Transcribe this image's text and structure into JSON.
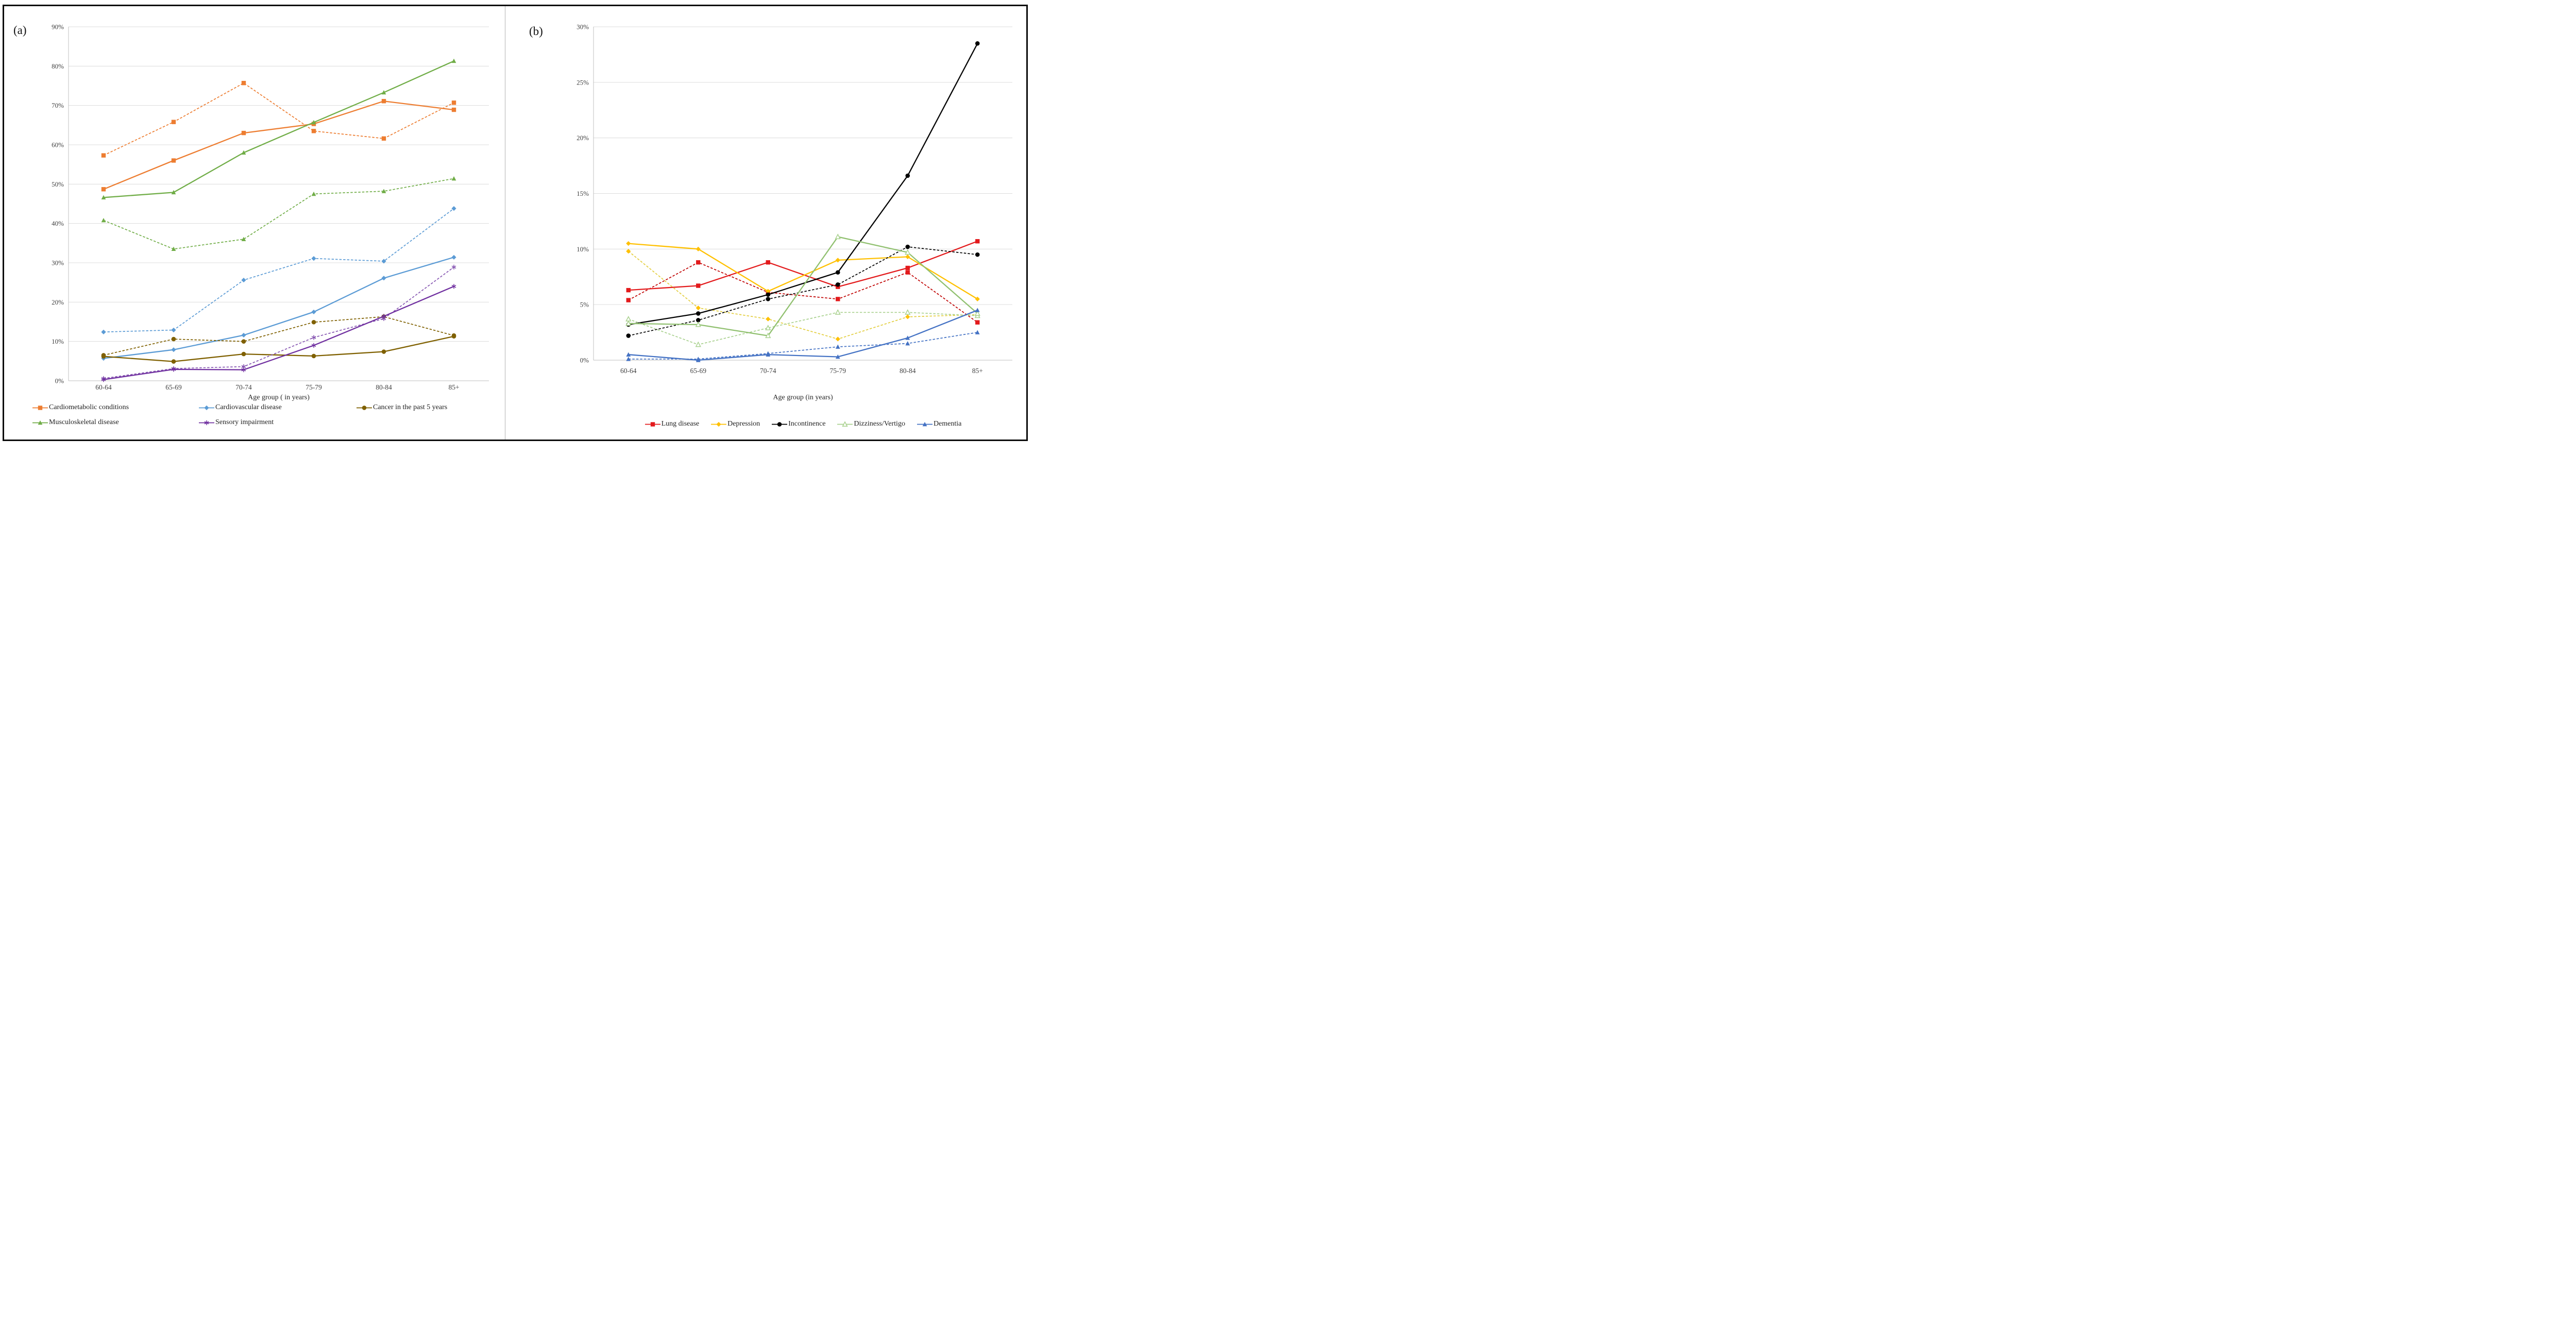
{
  "figure": {
    "panel_a": {
      "label": "(a)",
      "x_axis_title": "Age group ( in years)"
    },
    "panel_b": {
      "label": "(b)",
      "x_axis_title": "Age group (in years)"
    }
  },
  "colors": {
    "orange": "#ED7D31",
    "green": "#70AD47",
    "blue": "#5B9BD5",
    "olive": "#7F6000",
    "purple": "#7030A0",
    "purple_light": "#8757B2",
    "red": "#E31A1C",
    "dark_red": "#C00000",
    "gold": "#FFC000",
    "pale_yellow": "#E3CE3E",
    "black": "#000000",
    "light_green": "#A9D18E",
    "sage_green": "#90C06F",
    "dementia_blue": "#4472C4",
    "gridline": "#dcdcdc",
    "axis": "#bfbfbf",
    "tick_text": "#404040"
  },
  "chart_data": [
    {
      "id": "chart-a",
      "type": "line",
      "title": "",
      "xlabel": "Age group ( in years)",
      "ylabel": "",
      "categories": [
        "60-64",
        "65-69",
        "70-74",
        "75-79",
        "80-84",
        "85+"
      ],
      "ylim": [
        0,
        90
      ],
      "ytick_step": 10,
      "y_ticks": [
        "0%",
        "10%",
        "20%",
        "30%",
        "40%",
        "50%",
        "60%",
        "70%",
        "80%",
        "90%"
      ],
      "grid": true,
      "legend_position": "bottom-left-two-rows",
      "series": [
        {
          "name": "Cardiometabolic conditions (dashed)",
          "color": "#ED7D31",
          "marker": "square",
          "style": "dashed",
          "values": [
            57.3,
            65.8,
            75.7,
            63.5,
            61.6,
            70.7
          ]
        },
        {
          "name": "Cardiometabolic conditions",
          "color": "#ED7D31",
          "marker": "square",
          "style": "solid",
          "values": [
            48.7,
            56.0,
            63.0,
            65.3,
            71.1,
            68.9
          ]
        },
        {
          "name": "Musculoskeletal disease (dashed)",
          "color": "#70AD47",
          "marker": "triangle",
          "style": "dashed",
          "values": [
            40.8,
            33.5,
            36.0,
            47.5,
            48.2,
            51.4
          ]
        },
        {
          "name": "Musculoskeletal disease",
          "color": "#70AD47",
          "marker": "triangle",
          "style": "solid",
          "values": [
            46.6,
            47.9,
            58.0,
            65.7,
            73.3,
            81.3
          ]
        },
        {
          "name": "Cardiovascular disease (dashed)",
          "color": "#5B9BD5",
          "marker": "diamond",
          "style": "dashed",
          "values": [
            12.4,
            12.9,
            25.6,
            31.1,
            30.4,
            43.8
          ]
        },
        {
          "name": "Cardiovascular disease",
          "color": "#5B9BD5",
          "marker": "diamond",
          "style": "solid",
          "values": [
            5.7,
            7.9,
            11.6,
            17.5,
            26.1,
            31.4
          ]
        },
        {
          "name": "Cancer in the past 5 years (dashed)",
          "color": "#7F6000",
          "marker": "circle",
          "style": "dashed",
          "values": [
            6.5,
            10.6,
            10.0,
            14.9,
            16.3,
            11.5
          ]
        },
        {
          "name": "Cancer in the past 5 years",
          "color": "#7F6000",
          "marker": "circle",
          "style": "solid",
          "values": [
            6.2,
            4.9,
            6.8,
            6.3,
            7.4,
            11.3
          ]
        },
        {
          "name": "Sensory impairment (dashed)",
          "color": "#8757B2",
          "marker": "star",
          "style": "dashed",
          "values": [
            0.6,
            3.1,
            3.6,
            11.0,
            15.8,
            28.9
          ]
        },
        {
          "name": "Sensory impairment",
          "color": "#7030A0",
          "marker": "star",
          "style": "solid",
          "values": [
            0.3,
            2.9,
            2.8,
            9.0,
            16.4,
            24.0
          ]
        }
      ],
      "legend": [
        {
          "label": "Cardiometabolic conditions",
          "color": "#ED7D31",
          "marker": "square"
        },
        {
          "label": "Cardiovascular disease",
          "color": "#5B9BD5",
          "marker": "diamond"
        },
        {
          "label": "Cancer in the past 5 years",
          "color": "#7F6000",
          "marker": "circle"
        },
        {
          "label": "Musculoskeletal disease",
          "color": "#70AD47",
          "marker": "triangle"
        },
        {
          "label": "Sensory impairment",
          "color": "#7030A0",
          "marker": "star"
        }
      ]
    },
    {
      "id": "chart-b",
      "type": "line",
      "title": "",
      "xlabel": "Age group (in years)",
      "ylabel": "",
      "categories": [
        "60-64",
        "65-69",
        "70-74",
        "75-79",
        "80-84",
        "85+"
      ],
      "ylim": [
        0,
        30
      ],
      "ytick_step": 5,
      "y_ticks": [
        "0%",
        "5%",
        "10%",
        "15%",
        "20%",
        "25%",
        "30%"
      ],
      "grid": true,
      "legend_position": "bottom-center-one-row",
      "series": [
        {
          "name": "Lung disease (dashed)",
          "color": "#C00000",
          "marker": "square",
          "marker_color": "#E31A1C",
          "style": "dashed",
          "values": [
            5.4,
            8.8,
            6.1,
            5.5,
            7.9,
            3.4
          ]
        },
        {
          "name": "Lung disease",
          "color": "#E31A1C",
          "marker": "square",
          "style": "solid",
          "values": [
            6.3,
            6.7,
            8.8,
            6.6,
            8.3,
            10.7
          ]
        },
        {
          "name": "Depression (dashed)",
          "color": "#E3CE3E",
          "marker": "diamond",
          "marker_color": "#FFC000",
          "style": "dashed",
          "values": [
            9.8,
            4.7,
            3.7,
            1.9,
            3.9,
            4.1
          ]
        },
        {
          "name": "Depression",
          "color": "#FFC000",
          "marker": "diamond",
          "style": "solid",
          "values": [
            10.5,
            10.0,
            6.2,
            9.0,
            9.3,
            5.5
          ]
        },
        {
          "name": "Incontinence (dashed)",
          "color": "#000000",
          "marker": "circle",
          "style": "dashed",
          "values": [
            2.2,
            3.6,
            5.5,
            6.8,
            10.2,
            9.5
          ]
        },
        {
          "name": "Incontinence",
          "color": "#000000",
          "marker": "circle",
          "style": "solid",
          "values": [
            3.2,
            4.2,
            5.9,
            7.9,
            16.6,
            28.5
          ]
        },
        {
          "name": "Dizziness/Vertigo (dashed)",
          "color": "#A9D18E",
          "marker": "triangle-open",
          "style": "dashed",
          "values": [
            3.7,
            1.4,
            2.9,
            4.3,
            4.3,
            4.0
          ]
        },
        {
          "name": "Dizziness/Vertigo",
          "color": "#90C06F",
          "marker": "triangle-open",
          "marker_color": "#A9D18E",
          "style": "solid",
          "values": [
            3.3,
            3.2,
            2.2,
            11.1,
            9.7,
            4.2
          ]
        },
        {
          "name": "Dementia (dashed)",
          "color": "#4472C4",
          "marker": "triangle",
          "style": "dashed",
          "values": [
            0.1,
            0.1,
            0.6,
            1.2,
            1.5,
            2.5
          ]
        },
        {
          "name": "Dementia",
          "color": "#4472C4",
          "marker": "triangle",
          "style": "solid",
          "values": [
            0.5,
            0.0,
            0.5,
            0.3,
            2.0,
            4.5
          ]
        }
      ],
      "legend": [
        {
          "label": "Lung disease",
          "color": "#E31A1C",
          "marker": "square"
        },
        {
          "label": "Depression",
          "color": "#FFC000",
          "marker": "diamond"
        },
        {
          "label": "Incontinence",
          "color": "#000000",
          "marker": "circle"
        },
        {
          "label": "Dizziness/Vertigo",
          "color": "#A9D18E",
          "marker": "triangle-open"
        },
        {
          "label": "Dementia",
          "color": "#4472C4",
          "marker": "triangle"
        }
      ]
    }
  ]
}
